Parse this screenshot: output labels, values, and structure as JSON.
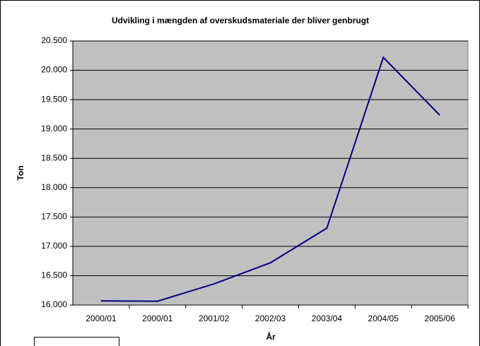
{
  "chart_data": {
    "type": "line",
    "title": "Udvikling i mængden af overskudsmateriale der bliver genbrugt",
    "x_label": "År",
    "y_label": "Ton",
    "categories": [
      "2000/01",
      "2000/01",
      "2001/02",
      "2002/03",
      "2003/04",
      "2004/05",
      "2005/06"
    ],
    "series": [
      {
        "name": "Ton",
        "color": "#000080",
        "values": [
          16070,
          16065,
          16360,
          16720,
          17310,
          20220,
          19235
        ]
      }
    ],
    "ylim": [
      16000,
      20500
    ],
    "yticks": [
      {
        "value": 16000,
        "label": "16.000"
      },
      {
        "value": 16500,
        "label": "16.500"
      },
      {
        "value": 17000,
        "label": "17.000"
      },
      {
        "value": 17500,
        "label": "17.500"
      },
      {
        "value": 18000,
        "label": "18.000"
      },
      {
        "value": 18500,
        "label": "18.500"
      },
      {
        "value": 19000,
        "label": "19.000"
      },
      {
        "value": 19500,
        "label": "19.500"
      },
      {
        "value": 20000,
        "label": "20.000"
      },
      {
        "value": 20500,
        "label": "20.500"
      }
    ],
    "grid": true
  }
}
